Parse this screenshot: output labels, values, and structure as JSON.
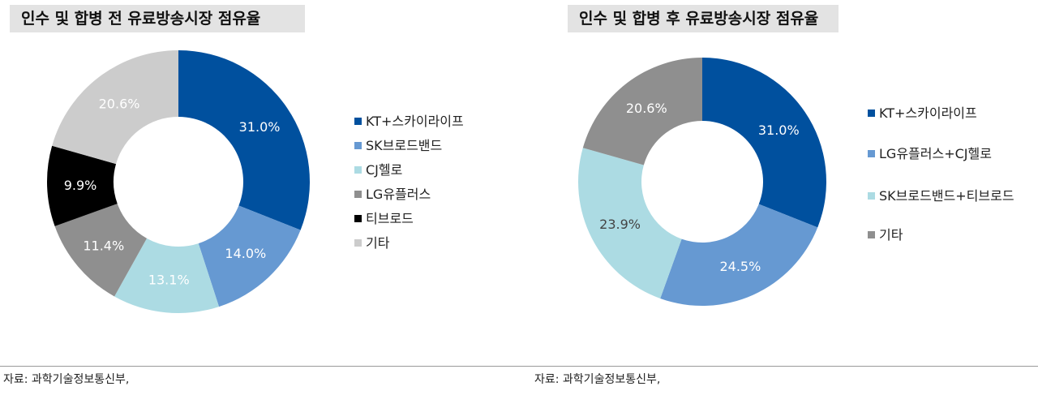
{
  "chart_data": [
    {
      "type": "pie",
      "title": "인수 및 합병 전 유료방송시장 점유율",
      "categories": [
        "KT+스카이라이프",
        "SK브로드밴드",
        "CJ헬로",
        "LG유플러스",
        "티브로드",
        "기타"
      ],
      "values": [
        31.0,
        14.0,
        13.1,
        11.4,
        9.9,
        20.6
      ],
      "data_labels": [
        "31.0%",
        "14.0%",
        "13.1%",
        "11.4%",
        "9.9%",
        "20.6%"
      ],
      "colors": [
        "#00509e",
        "#6699d2",
        "#acdbe3",
        "#8f8f8f",
        "#000000",
        "#cccccc"
      ],
      "label_colors": [
        "#ffffff",
        "#ffffff",
        "#ffffff",
        "#ffffff",
        "#ffffff",
        "#ffffff"
      ],
      "donut": true,
      "legend_placement": "right"
    },
    {
      "type": "pie",
      "title": "인수 및 합병 후 유료방송시장 점유율",
      "categories": [
        "KT+스카이라이프",
        "LG유플러스+CJ헬로",
        "SK브로드밴드+티브로드",
        "기타"
      ],
      "values": [
        31.0,
        24.5,
        23.9,
        20.6
      ],
      "data_labels": [
        "31.0%",
        "24.5%",
        "23.9%",
        "20.6%"
      ],
      "colors": [
        "#00509e",
        "#6699d2",
        "#acdbe3",
        "#8f8f8f"
      ],
      "label_colors": [
        "#ffffff",
        "#ffffff",
        "#444444",
        "#ffffff"
      ],
      "donut": true,
      "legend_placement": "right"
    }
  ],
  "sources": [
    "자료: 과학기술정보통신부,",
    "자료: 과학기술정보통신부,"
  ]
}
